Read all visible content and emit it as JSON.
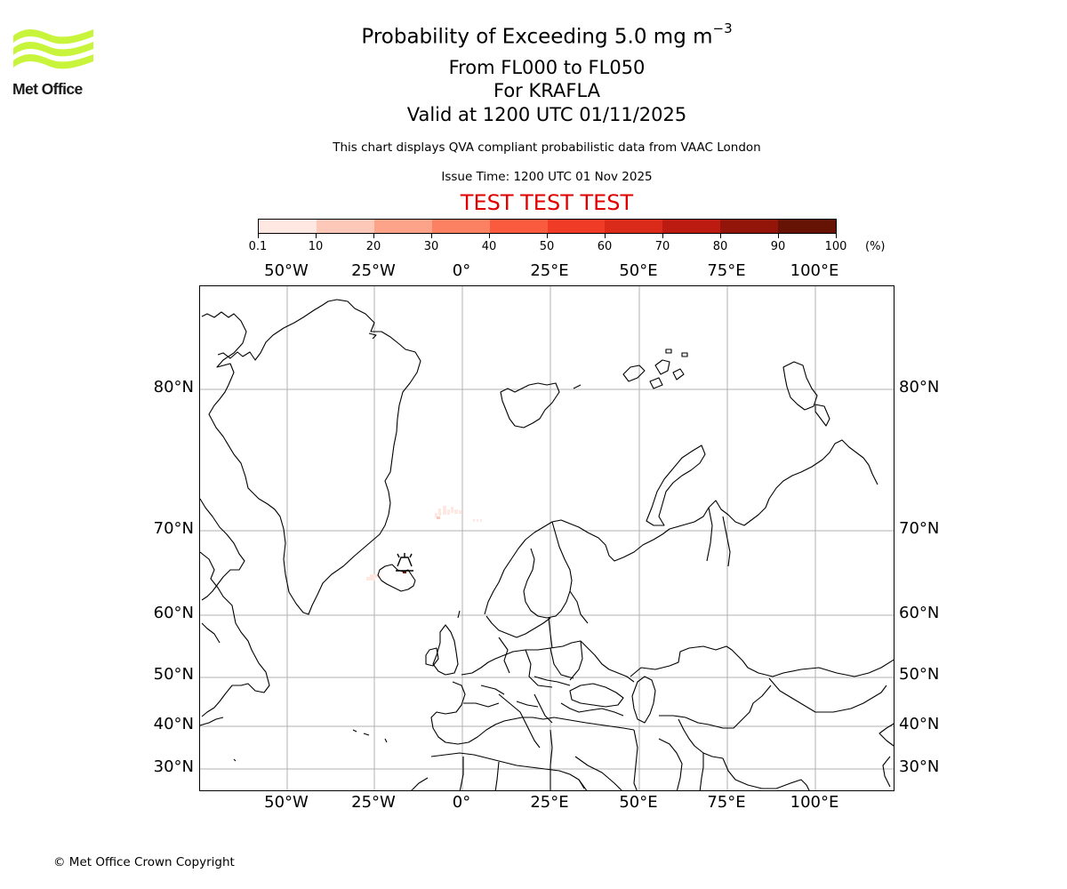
{
  "logo": {
    "brand": "Met Office",
    "color": "#c8f53c"
  },
  "header": {
    "title_prefix": "Probability of Exceeding 5.0 mg m",
    "title_superscript": "−3",
    "flight_levels": "From FL000 to FL050",
    "volcano": "For KRAFLA",
    "valid_time": "Valid at 1200 UTC 01/11/2025",
    "description": "This chart displays QVA compliant probabilistic data from VAAC London",
    "issue_time": "Issue Time: 1200 UTC 01 Nov 2025",
    "test_banner": "TEST TEST TEST",
    "test_color": "#e00000"
  },
  "colorbar": {
    "unit": "(%)",
    "ticks": [
      "0.1",
      "10",
      "20",
      "30",
      "40",
      "50",
      "60",
      "70",
      "80",
      "90",
      "100"
    ],
    "colors": [
      "#fee8e1",
      "#fdc8b8",
      "#fca38a",
      "#fc8062",
      "#fa5a3e",
      "#f03c26",
      "#d92a1a",
      "#bb1b10",
      "#931509",
      "#661205"
    ]
  },
  "map": {
    "longitude_labels": [
      "50°W",
      "25°W",
      "0°",
      "25°E",
      "50°E",
      "75°E",
      "100°E"
    ],
    "latitude_labels": [
      "80°N",
      "70°N",
      "60°N",
      "50°N",
      "40°N",
      "30°N"
    ],
    "gridline_color": "#b0b0b0",
    "volcano_marker": "volcano-symbol at Krafla, NE Iceland"
  },
  "chart_data": {
    "type": "heatmap",
    "title": "Probability of Exceeding 5.0 mg m-3",
    "subtitle": [
      "From FL000 to FL050",
      "For KRAFLA",
      "Valid at 1200 UTC 01/11/2025"
    ],
    "colorbar_bins": [
      0.1,
      10,
      20,
      30,
      40,
      50,
      60,
      70,
      80,
      90,
      100
    ],
    "colorbar_unit": "%",
    "x_ticks": [
      "50°W",
      "25°W",
      "0°",
      "25°E",
      "50°E",
      "75°E",
      "100°E"
    ],
    "y_ticks": [
      "80°N",
      "70°N",
      "60°N",
      "50°N",
      "40°N",
      "30°N"
    ],
    "grid": true,
    "features": [
      {
        "name": "ash probability region",
        "location": "north of Iceland near 70-72°N, 8°W-5°E",
        "probability_bin": "0.1-10"
      },
      {
        "name": "ash probability region",
        "location": "west of Iceland near 65°N, 25°W",
        "probability_bin": "0.1-10"
      },
      {
        "name": "ash probability region",
        "location": "over Krafla, NE Iceland",
        "probability_bin": "90-100"
      }
    ]
  },
  "footer": {
    "copyright": "© Met Office Crown Copyright"
  }
}
